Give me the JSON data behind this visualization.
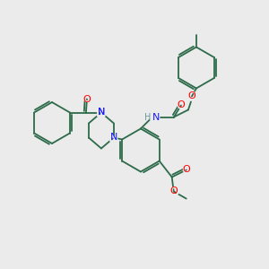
{
  "background_color": "#ebebeb",
  "bond_color": "#2d6b4a",
  "atom_colors": {
    "N": "#1a1aff",
    "O": "#ff0000",
    "H": "#6a9a9a",
    "C": "#2d6b4a"
  },
  "figsize": [
    3.0,
    3.0
  ],
  "dpi": 100
}
